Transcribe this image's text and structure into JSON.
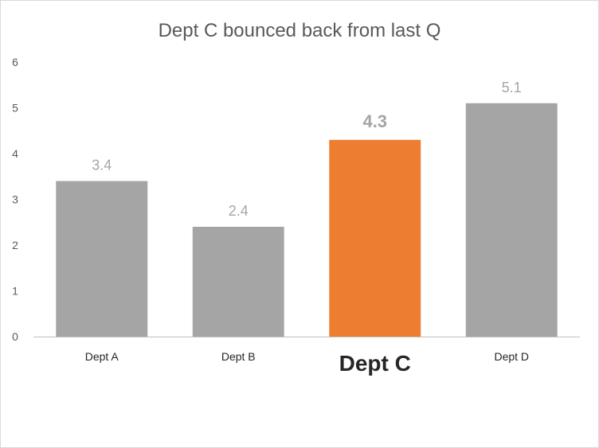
{
  "chart_data": {
    "type": "bar",
    "title": "Dept C bounced back from last Q",
    "xlabel": "",
    "ylabel": "",
    "categories": [
      "Dept A",
      "Dept B",
      "Dept C",
      "Dept D"
    ],
    "values": [
      3.4,
      2.4,
      4.3,
      5.1
    ],
    "data_labels": [
      "3.4",
      "2.4",
      "4.3",
      "5.1"
    ],
    "ylim": [
      0,
      6
    ],
    "yticks": [
      "0",
      "1",
      "2",
      "3",
      "4",
      "5",
      "6"
    ],
    "highlight_index": 2,
    "grid": false,
    "legend": "none",
    "colors": {
      "bar": "#a5a5a5",
      "highlight": "#ed7d31",
      "text": "#595959",
      "axis": "#bfbfbf"
    }
  }
}
